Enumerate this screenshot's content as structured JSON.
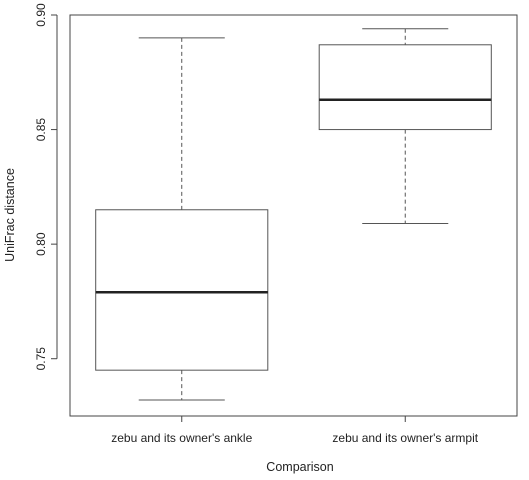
{
  "chart_data": {
    "type": "boxplot",
    "title": "",
    "xlabel": "Comparison",
    "ylabel": "UniFrac distance",
    "ylim": [
      0.725,
      0.9
    ],
    "yticks": [
      0.75,
      0.8,
      0.85,
      0.9
    ],
    "ytick_labels": [
      "0.75",
      "0.80",
      "0.85",
      "0.90"
    ],
    "categories": [
      "zebu and its owner's ankle",
      "zebu and its owner's armpit"
    ],
    "boxes": [
      {
        "whisker_low": 0.732,
        "q1": 0.745,
        "median": 0.779,
        "q3": 0.815,
        "whisker_high": 0.89
      },
      {
        "whisker_low": 0.809,
        "q1": 0.85,
        "median": 0.863,
        "q3": 0.887,
        "whisker_high": 0.894
      }
    ],
    "grid": false,
    "colors": {
      "box_fill": "#ffffff",
      "line": "#555555",
      "median": "#222222",
      "axis": "#444444"
    }
  }
}
